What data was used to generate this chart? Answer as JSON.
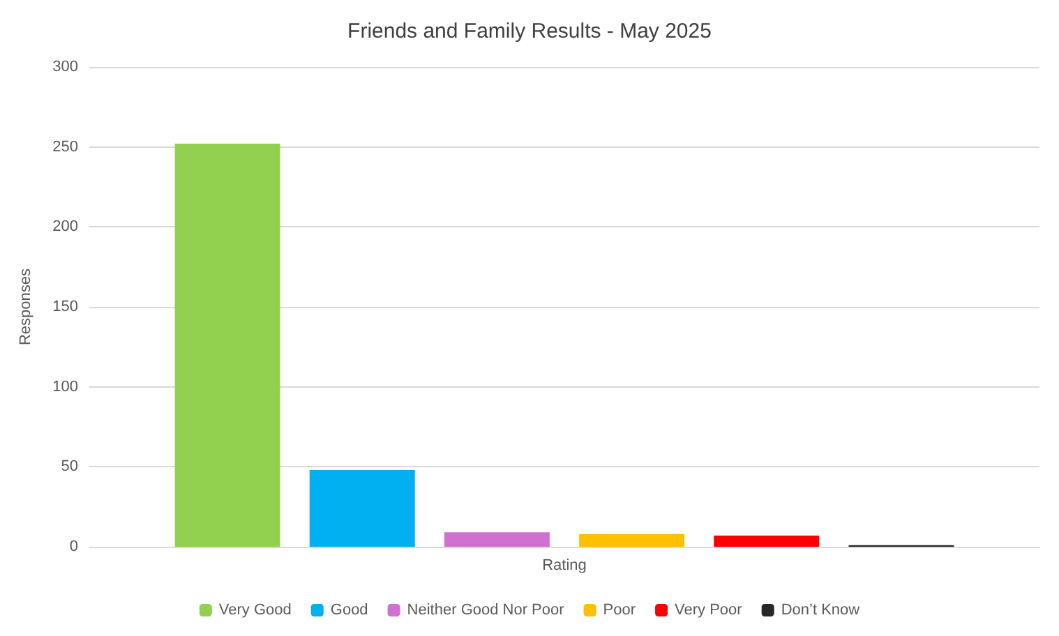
{
  "chart_data": {
    "type": "bar",
    "title": "Friends and Family Results - May 2025",
    "ylabel": "Responses",
    "categories": [
      "Rating"
    ],
    "series": [
      {
        "name": "Very Good",
        "color": "#92d050",
        "values": [
          252
        ]
      },
      {
        "name": "Good",
        "color": "#00b0f0",
        "values": [
          48
        ]
      },
      {
        "name": "Neither Good Nor Poor",
        "color": "#d070d0",
        "values": [
          9
        ]
      },
      {
        "name": "Poor",
        "color": "#ffc000",
        "values": [
          8
        ]
      },
      {
        "name": "Very Poor",
        "color": "#ff0000",
        "values": [
          7
        ]
      },
      {
        "name": "Don’t Know",
        "color": "#262626",
        "values": [
          1
        ]
      }
    ],
    "ylim": [
      0,
      300
    ],
    "yticks": [
      0,
      50,
      100,
      150,
      200,
      250,
      300
    ],
    "grid": "y",
    "legend": "bottom"
  }
}
